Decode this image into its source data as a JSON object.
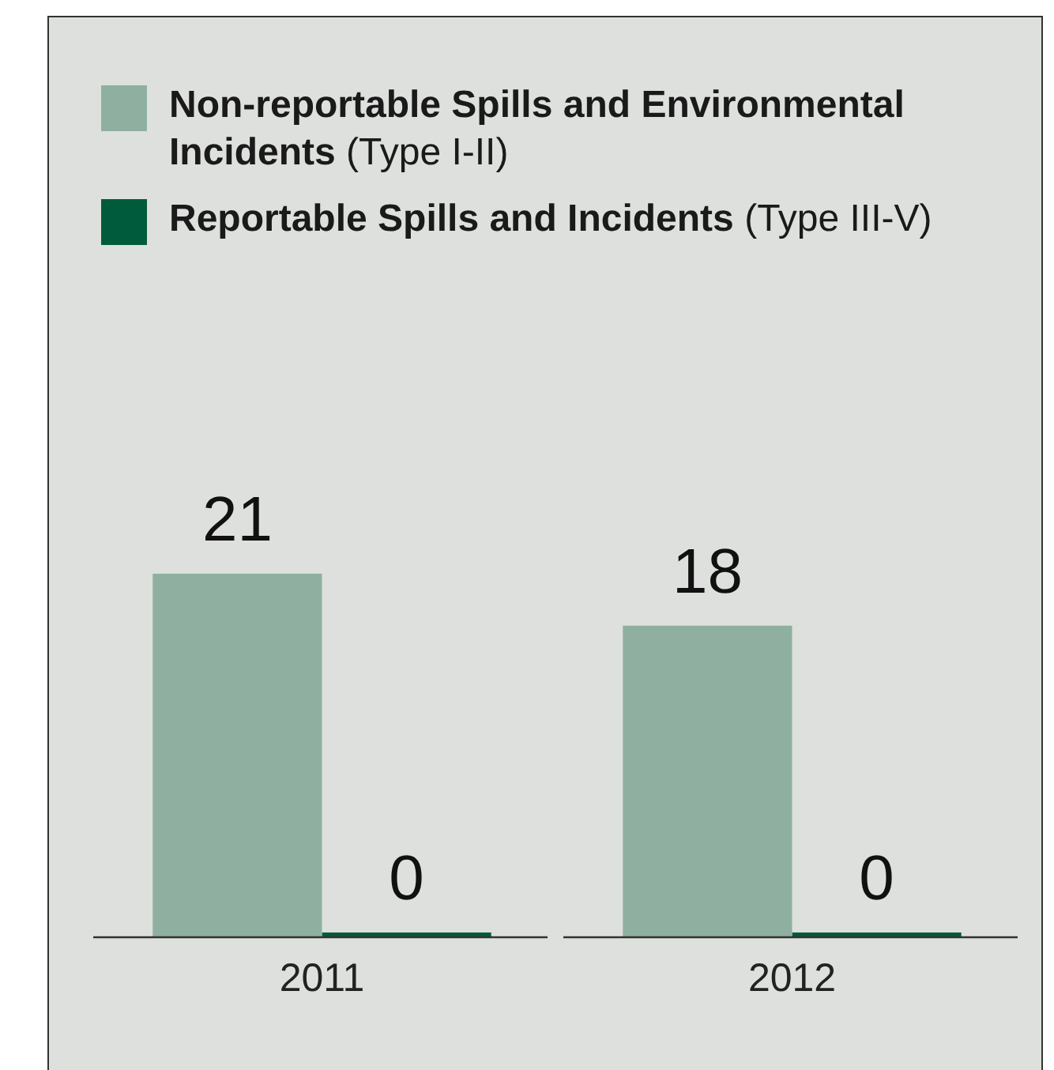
{
  "chart_data": {
    "type": "bar",
    "categories": [
      "2011",
      "2012"
    ],
    "series": [
      {
        "name": "Non-reportable Spills and Environmental Incidents (Type I-II)",
        "color": "#8fb0a0",
        "values": [
          21,
          18
        ]
      },
      {
        "name": "Reportable Spills and Incidents (Type III-V)",
        "color": "#005a3c",
        "values": [
          0,
          0
        ]
      }
    ],
    "data_labels": true,
    "legend": "top left",
    "grid": false
  }
}
